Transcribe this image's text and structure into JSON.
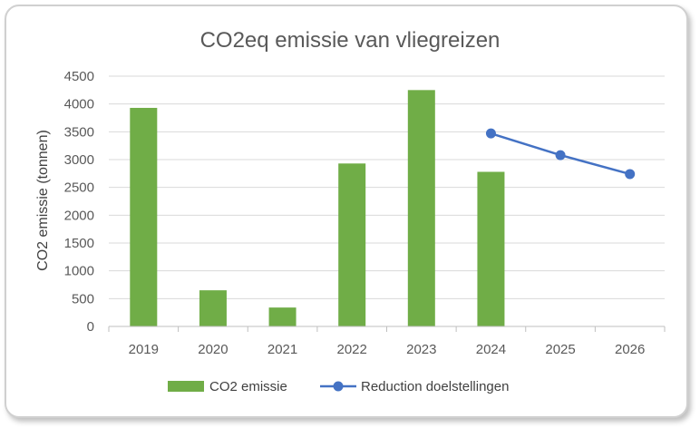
{
  "chart_data": {
    "type": "bar",
    "title": "CO2eq emissie van vliegreizen",
    "xlabel": "",
    "ylabel": "CO2 emissie (tonnen)",
    "ylim": [
      0,
      4500
    ],
    "yticks": [
      0,
      500,
      1000,
      1500,
      2000,
      2500,
      3000,
      3500,
      4000,
      4500
    ],
    "categories": [
      "2019",
      "2020",
      "2021",
      "2022",
      "2023",
      "2024",
      "2025",
      "2026"
    ],
    "grid": true,
    "legend_position": "bottom",
    "series": [
      {
        "name": "CO2 emissie",
        "type": "bar",
        "color": "#70ad47",
        "values": [
          3930,
          650,
          340,
          2930,
          4250,
          2780,
          null,
          null
        ]
      },
      {
        "name": "Reduction doelstellingen",
        "type": "line",
        "color": "#4472c4",
        "values": [
          null,
          null,
          null,
          null,
          null,
          3470,
          3080,
          2740
        ]
      }
    ]
  }
}
